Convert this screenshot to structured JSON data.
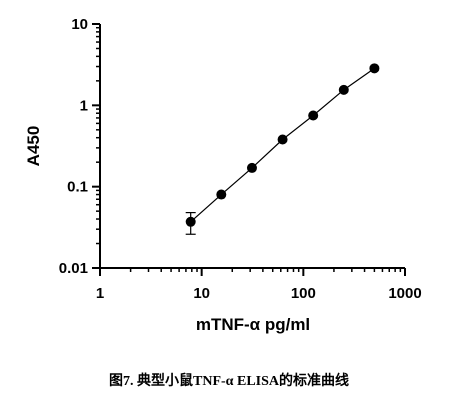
{
  "chart_data": {
    "type": "scatter",
    "xlabel": "mTNF-α pg/ml",
    "ylabel": "A450",
    "x_scale": "log",
    "y_scale": "log",
    "xlim": [
      1,
      1000
    ],
    "ylim": [
      0.01,
      10
    ],
    "x_ticks": [
      "1",
      "10",
      "100",
      "1000"
    ],
    "y_ticks": [
      "0.01",
      "0.1",
      "1",
      "10"
    ],
    "series": [
      {
        "x": [
          7.8,
          15.6,
          31.25,
          62.5,
          125,
          250,
          500
        ],
        "y": [
          0.037,
          0.08,
          0.17,
          0.38,
          0.75,
          1.55,
          2.85
        ],
        "y_err": [
          0.011,
          0,
          0,
          0,
          0,
          0,
          0
        ],
        "fit_line": true
      }
    ],
    "color": "#000000"
  },
  "caption": "图7. 典型小鼠TNF-α ELISA的标准曲线"
}
